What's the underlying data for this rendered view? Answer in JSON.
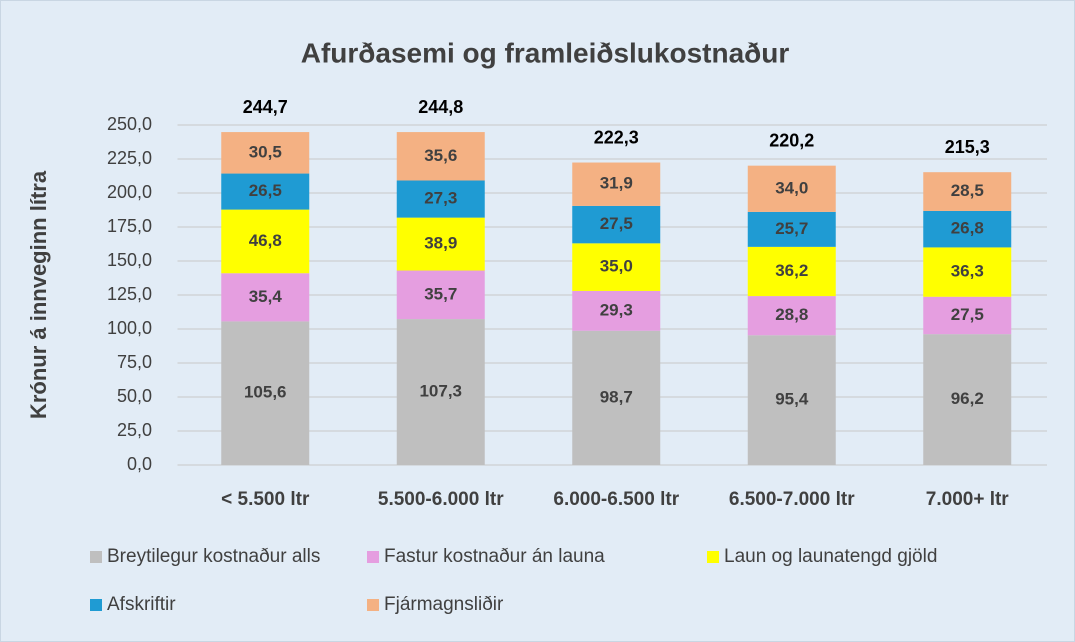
{
  "chart_data": {
    "type": "stacked_bar",
    "title": "Afurðasemi og framleiðslukostnaður",
    "y_label": "Krónur á innveginn lítra",
    "categories": [
      "< 5.500 ltr",
      "5.500-6.000 ltr",
      "6.000-6.500 ltr",
      "6.500-7.000 ltr",
      "7.000+ ltr"
    ],
    "series": [
      {
        "name": "Breytilegur kostnaður alls",
        "color": "#bfbfbf",
        "values": [
          105.6,
          107.3,
          98.7,
          95.4,
          96.2
        ],
        "value_labels": [
          "105,6",
          "107,3",
          "98,7",
          "95,4",
          "96,2"
        ]
      },
      {
        "name": "Fastur kostnaður án launa",
        "color": "#e59ee0",
        "values": [
          35.4,
          35.7,
          29.3,
          28.8,
          27.5
        ],
        "value_labels": [
          "35,4",
          "35,7",
          "29,3",
          "28,8",
          "27,5"
        ]
      },
      {
        "name": "Laun og launatengd gjöld",
        "color": "#ffff00",
        "values": [
          46.8,
          38.9,
          35.0,
          36.2,
          36.3
        ],
        "value_labels": [
          "46,8",
          "38,9",
          "35,0",
          "36,2",
          "36,3"
        ]
      },
      {
        "name": "Afskriftir",
        "color": "#1f9bd3",
        "values": [
          26.5,
          27.3,
          27.5,
          25.7,
          26.8
        ],
        "value_labels": [
          "26,5",
          "27,3",
          "27,5",
          "25,7",
          "26,8"
        ]
      },
      {
        "name": "Fjármagnsliðir",
        "color": "#f4b183",
        "values": [
          30.5,
          35.6,
          31.9,
          34.0,
          28.5
        ],
        "value_labels": [
          "30,5",
          "35,6",
          "31,9",
          "34,0",
          "28,5"
        ]
      }
    ],
    "totals": [
      244.7,
      244.8,
      222.3,
      220.2,
      215.3
    ],
    "total_labels": [
      "244,7",
      "244,8",
      "222,3",
      "220,2",
      "215,3"
    ],
    "ylim": [
      0,
      250
    ],
    "yticks": [
      {
        "value": 0,
        "label": "0,0"
      },
      {
        "value": 25,
        "label": "25,0"
      },
      {
        "value": 50,
        "label": "50,0"
      },
      {
        "value": 75,
        "label": "75,0"
      },
      {
        "value": 100,
        "label": "100,0"
      },
      {
        "value": 125,
        "label": "125,0"
      },
      {
        "value": 150,
        "label": "150,0"
      },
      {
        "value": 175,
        "label": "175,0"
      },
      {
        "value": 200,
        "label": "200,0"
      },
      {
        "value": 225,
        "label": "225,0"
      },
      {
        "value": 250,
        "label": "250,0"
      }
    ],
    "grid": true,
    "legend": "bottom"
  }
}
